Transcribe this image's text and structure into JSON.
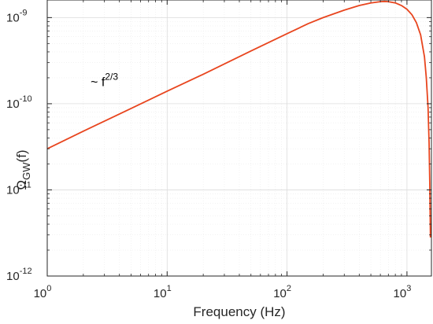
{
  "chart_data": {
    "type": "line",
    "xlabel": "Frequency (Hz)",
    "ylabel": "Ω_GW(f)",
    "ylabel_main": "Ω",
    "ylabel_sub": "GW",
    "ylabel_tail": "(f)",
    "xscale": "log",
    "yscale": "log",
    "xlim": [
      1,
      1600
    ],
    "ylim": [
      1e-12,
      1.6e-09
    ],
    "grid": true,
    "x_ticks": [
      {
        "value": 1,
        "base": "10",
        "exp": "0"
      },
      {
        "value": 10,
        "base": "10",
        "exp": "1"
      },
      {
        "value": 100,
        "base": "10",
        "exp": "2"
      },
      {
        "value": 1000,
        "base": "10",
        "exp": "3"
      }
    ],
    "y_ticks": [
      {
        "value": 1e-12,
        "base": "10",
        "exp": "-12"
      },
      {
        "value": 1e-11,
        "base": "10",
        "exp": "-11"
      },
      {
        "value": 1e-10,
        "base": "10",
        "exp": "-10"
      },
      {
        "value": 1e-09,
        "base": "10",
        "exp": "-9"
      }
    ],
    "annotation": {
      "base": "~ f",
      "exp": "2/3",
      "x": 2.3,
      "y": 1.6e-10
    },
    "series": [
      {
        "color": "#e8451e",
        "x": [
          1,
          2,
          5,
          10,
          20,
          50,
          100,
          150,
          200,
          300,
          400,
          500,
          600,
          650,
          700,
          800,
          900,
          1000,
          1100,
          1200,
          1300,
          1400,
          1450,
          1500,
          1530,
          1550,
          1570
        ],
        "y": [
          3e-11,
          4.8e-11,
          8.8e-11,
          1.4e-10,
          2.2e-10,
          4.1e-10,
          6.5e-10,
          8.5e-10,
          1e-09,
          1.22e-09,
          1.38e-09,
          1.48e-09,
          1.53e-09,
          1.54e-09,
          1.53e-09,
          1.48e-09,
          1.38e-09,
          1.25e-09,
          1.08e-09,
          8.7e-10,
          6.3e-10,
          3.5e-10,
          2e-10,
          9e-11,
          3.5e-11,
          1.2e-11,
          2.8e-12
        ]
      }
    ]
  }
}
